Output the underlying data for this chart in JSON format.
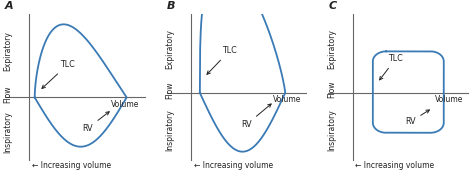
{
  "panels": [
    "A",
    "B",
    "C"
  ],
  "panel_label_fontsize": 8,
  "curve_color": "#3a7ab5",
  "curve_lw": 1.3,
  "axis_color": "#666666",
  "text_color": "#222222",
  "label_fontsize": 5.5,
  "annot_fontsize": 5.8,
  "bg_color": "#ffffff",
  "ylabel_expiratory": "Expiratory",
  "ylabel_inspiratory": "Inspiratory",
  "ylabel_flow": "Flow",
  "xlabel_volume": "Volume",
  "xlabel_increasing": "← Increasing volume",
  "tlc_label": "TLC",
  "rv_label": "RV"
}
